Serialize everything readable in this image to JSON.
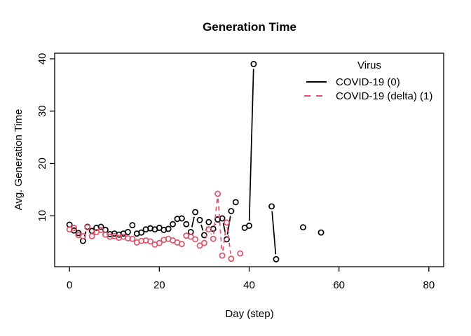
{
  "figure": {
    "title": "Generation Time",
    "x_axis": {
      "label": "Day (step)"
    },
    "y_axis": {
      "label": "Avg. Generation Time"
    },
    "legend": {
      "title": "Virus",
      "entries": [
        {
          "label": "COVID-19 (0)",
          "color": "#000000",
          "linestyle": "solid"
        },
        {
          "label": "COVID-19 (delta) (1)",
          "color": "#DF536B",
          "linestyle": "dashed"
        }
      ]
    }
  },
  "chart_data": {
    "type": "line",
    "title": "Generation Time",
    "xlabel": "Day (step)",
    "ylabel": "Avg. Generation Time",
    "xlim": [
      -3.3,
      83.3
    ],
    "ylim": [
      0.27,
      41.07
    ],
    "x_ticks": [
      0,
      20,
      40,
      60,
      80
    ],
    "y_ticks": [
      10,
      20,
      30,
      40
    ],
    "grid": false,
    "marker": "open-circle",
    "legend_position": "top-right",
    "series": [
      {
        "name": "COVID-19 (0)",
        "color": "#000000",
        "linestyle": "solid",
        "points": [
          [
            0,
            8.3
          ],
          [
            1,
            7.2
          ],
          [
            2,
            6.7
          ],
          [
            3,
            5.2
          ],
          [
            4,
            7.9
          ],
          [
            5,
            7.1
          ],
          [
            6,
            7.7
          ],
          [
            7,
            7.9
          ],
          [
            8,
            7.3
          ],
          [
            9,
            6.5
          ],
          [
            10,
            6.6
          ],
          [
            11,
            6.4
          ],
          [
            12,
            6.6
          ],
          [
            13,
            6.9
          ],
          [
            14,
            8.2
          ],
          [
            15,
            6.6
          ],
          [
            16,
            6.8
          ],
          [
            17,
            7.4
          ],
          [
            18,
            7.6
          ],
          [
            19,
            7.4
          ],
          [
            20,
            7.7
          ],
          [
            21,
            7.3
          ],
          [
            22,
            7.5
          ],
          [
            23,
            8.4
          ],
          [
            24,
            9.4
          ],
          [
            25,
            9.5
          ],
          [
            26,
            8.4
          ],
          [
            27,
            6.9
          ],
          [
            28,
            10.7
          ],
          [
            29,
            9.2
          ],
          [
            30,
            6.3
          ],
          [
            31,
            8.8
          ],
          [
            32,
            7.5
          ],
          [
            33,
            9.3
          ],
          [
            34,
            9.5
          ],
          [
            35,
            5.5
          ],
          [
            36,
            10.9
          ],
          [
            37,
            12.6
          ],
          null,
          [
            39,
            7.7
          ],
          [
            40,
            8.1
          ],
          [
            41,
            39.0
          ],
          null,
          [
            45,
            11.8
          ],
          [
            46,
            1.7
          ],
          null,
          [
            52,
            7.8
          ],
          null,
          [
            56,
            6.8
          ]
        ]
      },
      {
        "name": "COVID-19 (delta) (1)",
        "color": "#DF536B",
        "linestyle": "dashed",
        "points": [
          [
            0,
            7.4
          ],
          [
            1,
            7.7
          ],
          [
            2,
            6.3
          ],
          [
            3,
            6.1
          ],
          [
            4,
            7.8
          ],
          [
            5,
            6.1
          ],
          [
            6,
            6.9
          ],
          [
            7,
            7.3
          ],
          [
            8,
            6.4
          ],
          [
            9,
            6.0
          ],
          [
            10,
            6.1
          ],
          [
            11,
            5.8
          ],
          [
            12,
            6.0
          ],
          [
            13,
            5.7
          ],
          [
            14,
            5.6
          ],
          [
            15,
            4.9
          ],
          [
            16,
            5.2
          ],
          [
            17,
            5.3
          ],
          [
            18,
            5.1
          ],
          [
            19,
            4.5
          ],
          [
            20,
            4.8
          ],
          [
            21,
            5.4
          ],
          [
            22,
            5.6
          ],
          [
            23,
            5.3
          ],
          [
            24,
            4.9
          ],
          [
            25,
            4.6
          ],
          [
            26,
            6.2
          ],
          [
            27,
            6.0
          ],
          [
            28,
            5.5
          ],
          [
            29,
            4.3
          ],
          [
            30,
            4.8
          ],
          [
            31,
            7.4
          ],
          [
            32,
            5.6
          ],
          [
            33,
            14.2
          ],
          [
            34,
            2.4
          ],
          [
            35,
            8.7
          ],
          [
            36,
            1.8
          ],
          null,
          [
            38,
            2.8
          ]
        ]
      }
    ]
  }
}
